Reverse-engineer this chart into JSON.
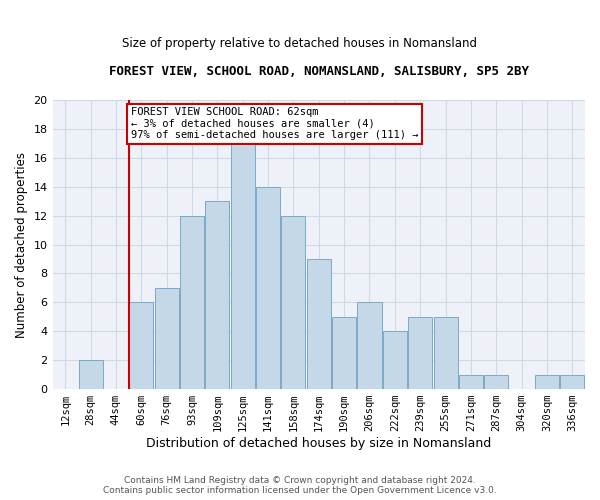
{
  "title": "FOREST VIEW, SCHOOL ROAD, NOMANSLAND, SALISBURY, SP5 2BY",
  "subtitle": "Size of property relative to detached houses in Nomansland",
  "xlabel": "Distribution of detached houses by size in Nomansland",
  "ylabel": "Number of detached properties",
  "footer_line1": "Contains HM Land Registry data © Crown copyright and database right 2024.",
  "footer_line2": "Contains public sector information licensed under the Open Government Licence v3.0.",
  "bin_labels": [
    "12sqm",
    "28sqm",
    "44sqm",
    "60sqm",
    "76sqm",
    "93sqm",
    "109sqm",
    "125sqm",
    "141sqm",
    "158sqm",
    "174sqm",
    "190sqm",
    "206sqm",
    "222sqm",
    "239sqm",
    "255sqm",
    "271sqm",
    "287sqm",
    "304sqm",
    "320sqm",
    "336sqm"
  ],
  "bar_values": [
    0,
    2,
    0,
    6,
    7,
    12,
    13,
    17,
    14,
    12,
    9,
    5,
    6,
    4,
    5,
    5,
    1,
    1,
    0,
    1,
    1
  ],
  "bar_color": "#c5d8e8",
  "bar_edge_color": "#7aaac8",
  "grid_color": "#d0d8e8",
  "background_color": "#eef2f8",
  "property_line_color": "#cc0000",
  "annotation_text": "FOREST VIEW SCHOOL ROAD: 62sqm\n← 3% of detached houses are smaller (4)\n97% of semi-detached houses are larger (111) →",
  "annotation_box_color": "#ffffff",
  "annotation_box_edge_color": "#cc0000",
  "ylim": [
    0,
    20
  ],
  "yticks": [
    0,
    2,
    4,
    6,
    8,
    10,
    12,
    14,
    16,
    18,
    20
  ],
  "property_bin_index": 3,
  "figwidth": 6.0,
  "figheight": 5.0,
  "dpi": 100
}
